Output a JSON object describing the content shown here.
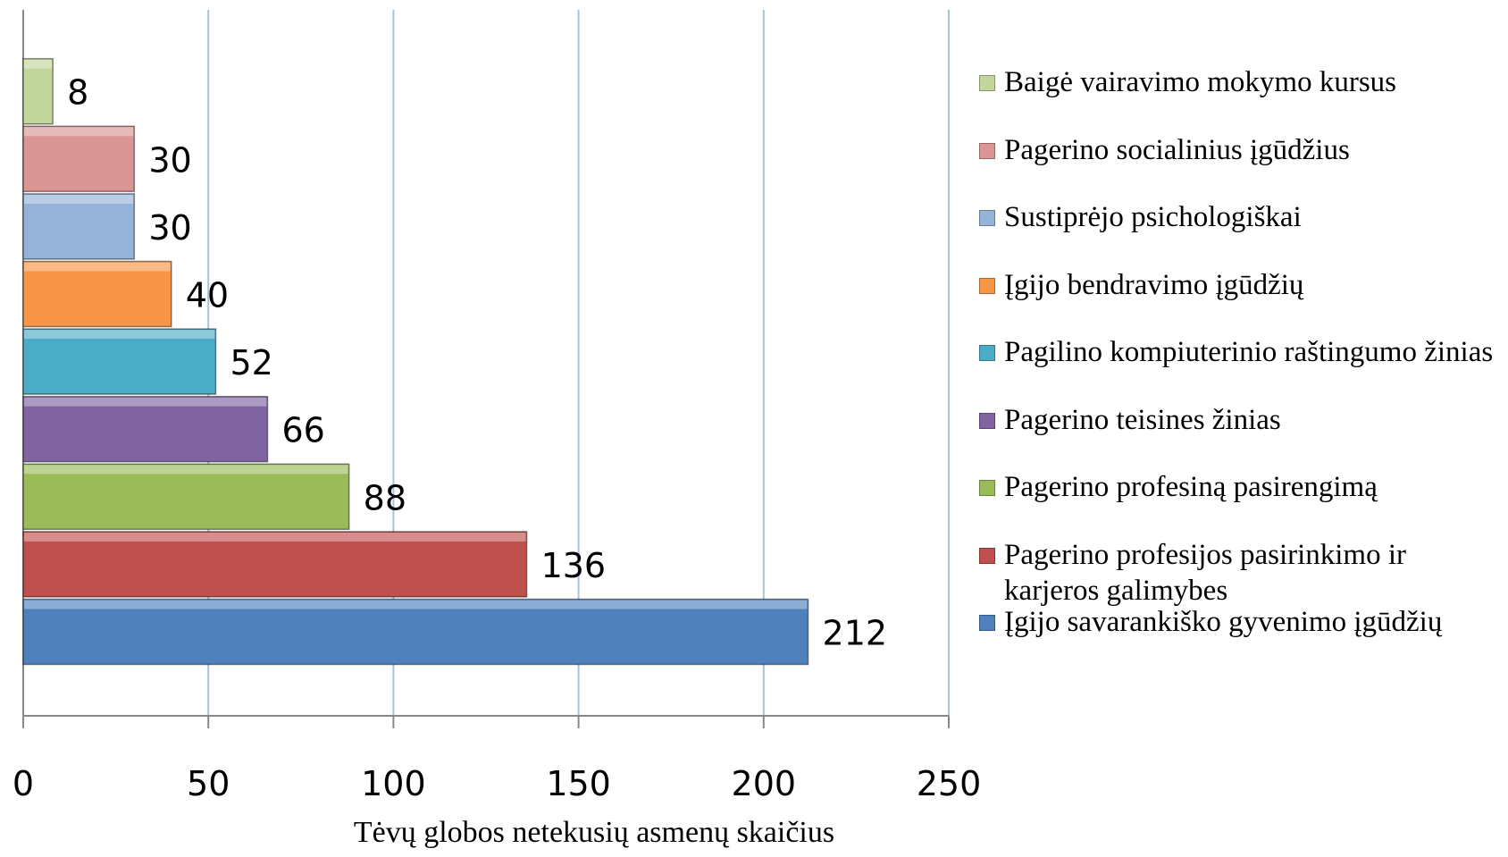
{
  "chart_data": {
    "type": "barh",
    "xlabel": "Tėvų globos netekusių asmenų skaičius",
    "series": [
      {
        "name": "Įgijo savarankiško gyvenimo įgūdžių",
        "color": "#4f81bd",
        "values": [
          212
        ]
      },
      {
        "name": "Pagerino profesijos pasirinkimo ir karjeros galimybes",
        "color": "#c0504d",
        "values": [
          136
        ]
      },
      {
        "name": "Pagerino profesiną pasirengimą",
        "color": "#9bbb59",
        "values": [
          88
        ]
      },
      {
        "name": "Pagerino teisines žinias",
        "color": "#8064a2",
        "values": [
          66
        ]
      },
      {
        "name": "Pagilino kompiuterinio raštingumo žinias",
        "color": "#4bacc6",
        "values": [
          52
        ]
      },
      {
        "name": "Įgijo bendravimo įgūdžių",
        "color": "#f79646",
        "values": [
          40
        ]
      },
      {
        "name": "Sustiprėjo psichologiškai",
        "color": "#95b3d7",
        "values": [
          30
        ]
      },
      {
        "name": "Pagerino socialinius įgūdžius",
        "color": "#d99694",
        "values": [
          30
        ]
      },
      {
        "name": "Baigė vairavimo mokymo kursus",
        "color": "#c3d69b",
        "values": [
          8
        ]
      }
    ],
    "xlim": [
      0,
      250
    ],
    "xticks": [
      0,
      50,
      100,
      150,
      200,
      250
    ],
    "grid": true,
    "legend": "right"
  }
}
